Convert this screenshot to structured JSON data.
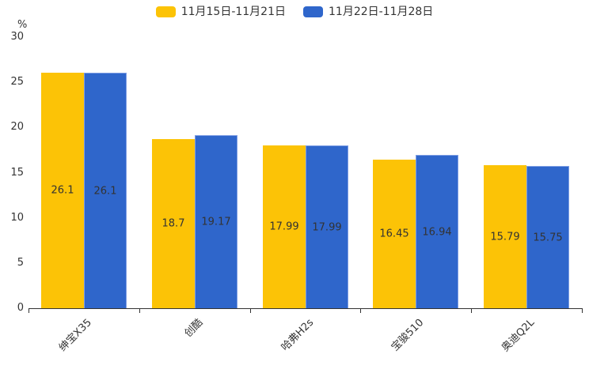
{
  "chart_data": {
    "type": "bar",
    "title": "",
    "categories": [
      "绅宝X35",
      "创酷",
      "哈弗H2s",
      "宝骏510",
      "奥迪Q2L"
    ],
    "series": [
      {
        "name": "11月15日-11月21日",
        "color": "#FCC306",
        "values": [
          26.1,
          18.7,
          17.99,
          16.45,
          15.79
        ]
      },
      {
        "name": "11月22日-11月28日",
        "color": "#2F66CB",
        "border_color": "#7E9EE4",
        "values": [
          26.1,
          19.17,
          17.99,
          16.94,
          15.75
        ]
      }
    ],
    "value_labels": [
      "26.1",
      "26.1",
      "18.7",
      "19.17",
      "17.99",
      "17.99",
      "16.45",
      "16.94",
      "15.79",
      "15.75"
    ],
    "xlabel": "",
    "ylabel": "%",
    "ylim": [
      0,
      30
    ],
    "yticks": [
      0,
      5,
      10,
      15,
      20,
      25,
      30
    ],
    "grid": false,
    "legend_position": "top",
    "value_label_position": "inside-center",
    "xlabel_rotation_deg": 45,
    "text_color": "#333333",
    "axis_color": "#333333",
    "background_color": "#ffffff"
  }
}
